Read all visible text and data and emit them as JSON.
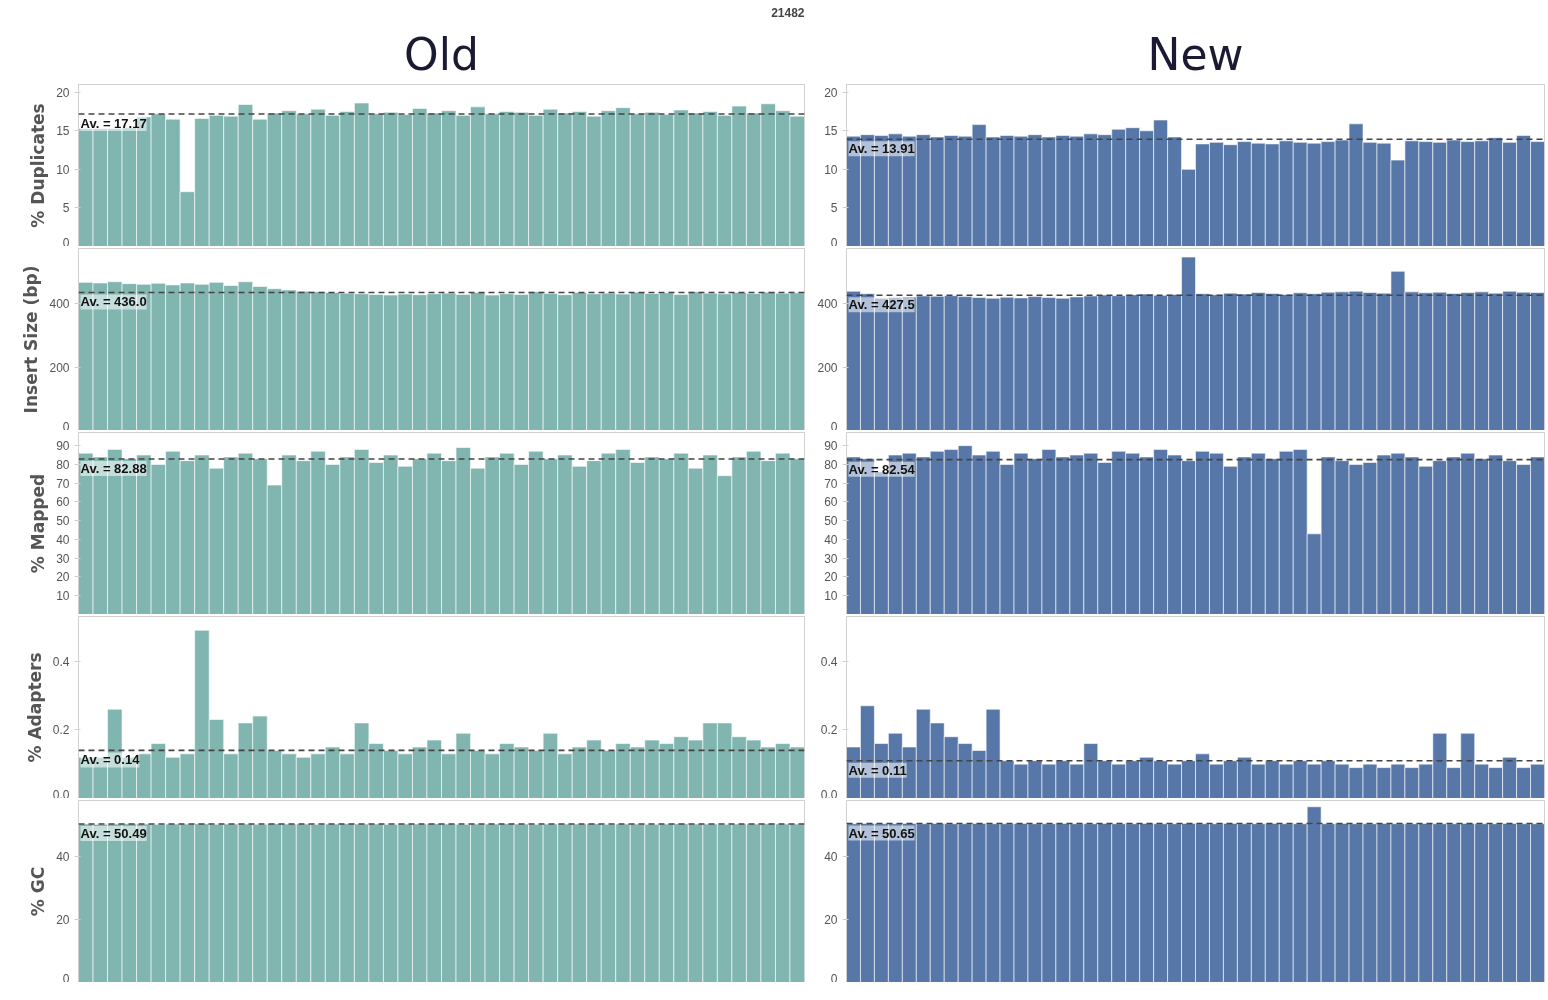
{
  "chart_data": [
    {
      "type": "bar",
      "title": "Old",
      "ylabel": "% Duplicates",
      "tick_labels": "y",
      "annotations": [
        "21482"
      ],
      "color": "#80b5b0",
      "ylim": [
        0,
        21
      ],
      "yticks": [
        0,
        5,
        10,
        15,
        20
      ],
      "categories": [
        null,
        null,
        null,
        null,
        null,
        null,
        null,
        null,
        null,
        null,
        null,
        null,
        null,
        null,
        null,
        null,
        null,
        null,
        null,
        null,
        null,
        null,
        null,
        null,
        null,
        null,
        null,
        null,
        null,
        null,
        null,
        null,
        null,
        null,
        null,
        null,
        null,
        null,
        null,
        null,
        null,
        null,
        null,
        null,
        null,
        null,
        null,
        null,
        null,
        null
      ],
      "values": [
        15.3,
        15.3,
        15.3,
        15.4,
        16.8,
        17.2,
        16.5,
        7.1,
        16.6,
        17.0,
        16.9,
        18.4,
        16.5,
        17.3,
        17.6,
        17.2,
        17.8,
        17.0,
        17.5,
        18.6,
        17.2,
        17.4,
        17.1,
        17.9,
        17.3,
        17.6,
        17.0,
        18.1,
        17.2,
        17.5,
        17.4,
        17.0,
        17.8,
        17.3,
        17.5,
        16.9,
        17.6,
        18.0,
        17.2,
        17.4,
        17.1,
        17.7,
        17.3,
        17.5,
        17.0,
        18.2,
        17.3,
        18.5,
        17.6,
        16.9
      ],
      "ref_lines": [
        {
          "axis": "y",
          "value": 17.17,
          "label": "Av. = 17.17",
          "color": "#444444",
          "line_style": "dashed"
        }
      ]
    },
    {
      "type": "bar",
      "title": "New",
      "tick_labels": "y",
      "color": "#5677a7",
      "ylim": [
        0,
        21
      ],
      "yticks": [
        0,
        5,
        10,
        15,
        20
      ],
      "categories": [
        null,
        null,
        null,
        null,
        null,
        null,
        null,
        null,
        null,
        null,
        null,
        null,
        null,
        null,
        null,
        null,
        null,
        null,
        null,
        null,
        null,
        null,
        null,
        null,
        null,
        null,
        null,
        null,
        null,
        null,
        null,
        null,
        null,
        null,
        null,
        null,
        null,
        null,
        null,
        null,
        null,
        null,
        null,
        null,
        null,
        null,
        null,
        null,
        null,
        null
      ],
      "values": [
        14.3,
        14.5,
        14.4,
        14.6,
        14.3,
        14.5,
        14.2,
        14.4,
        14.3,
        15.8,
        14.2,
        14.4,
        14.3,
        14.5,
        14.2,
        14.4,
        14.3,
        14.6,
        14.5,
        15.2,
        15.4,
        15.0,
        16.4,
        14.2,
        10.0,
        13.3,
        13.5,
        13.2,
        13.6,
        13.4,
        13.3,
        13.7,
        13.5,
        13.4,
        13.6,
        13.8,
        15.9,
        13.5,
        13.4,
        11.2,
        13.7,
        13.6,
        13.5,
        13.8,
        13.6,
        13.7,
        14.1,
        13.5,
        14.4,
        13.6
      ],
      "ref_lines": [
        {
          "axis": "y",
          "value": 13.91,
          "label": "Av. = 13.91",
          "color": "#444444",
          "line_style": "dashed"
        }
      ]
    },
    {
      "type": "bar",
      "ylabel": "Insert Size (bp)",
      "tick_labels": "y",
      "color": "#80b5b0",
      "ylim": [
        0,
        575
      ],
      "yticks": [
        0,
        200,
        400
      ],
      "categories": [
        null,
        null,
        null,
        null,
        null,
        null,
        null,
        null,
        null,
        null,
        null,
        null,
        null,
        null,
        null,
        null,
        null,
        null,
        null,
        null,
        null,
        null,
        null,
        null,
        null,
        null,
        null,
        null,
        null,
        null,
        null,
        null,
        null,
        null,
        null,
        null,
        null,
        null,
        null,
        null,
        null,
        null,
        null,
        null,
        null,
        null,
        null,
        null,
        null,
        null
      ],
      "values": [
        468,
        466,
        470,
        464,
        462,
        465,
        460,
        466,
        462,
        468,
        458,
        470,
        455,
        448,
        444,
        440,
        438,
        436,
        434,
        432,
        430,
        428,
        431,
        429,
        432,
        434,
        430,
        436,
        428,
        432,
        430,
        438,
        433,
        429,
        436,
        432,
        434,
        431,
        437,
        433,
        435,
        430,
        438,
        434,
        432,
        436,
        433,
        437,
        434,
        435
      ],
      "ref_lines": [
        {
          "axis": "y",
          "value": 436.0,
          "label": "Av. = 436.0",
          "color": "#444444",
          "line_style": "dashed"
        }
      ]
    },
    {
      "type": "bar",
      "tick_labels": "y",
      "color": "#5677a7",
      "ylim": [
        0,
        575
      ],
      "yticks": [
        0,
        200,
        400
      ],
      "categories": [
        null,
        null,
        null,
        null,
        null,
        null,
        null,
        null,
        null,
        null,
        null,
        null,
        null,
        null,
        null,
        null,
        null,
        null,
        null,
        null,
        null,
        null,
        null,
        null,
        null,
        null,
        null,
        null,
        null,
        null,
        null,
        null,
        null,
        null,
        null,
        null,
        null,
        null,
        null,
        null,
        null,
        null,
        null,
        null,
        null,
        null,
        null,
        null,
        null,
        null
      ],
      "values": [
        440,
        432,
        418,
        420,
        422,
        425,
        424,
        426,
        423,
        420,
        418,
        421,
        419,
        423,
        420,
        418,
        422,
        425,
        428,
        426,
        429,
        431,
        427,
        430,
        548,
        432,
        429,
        434,
        431,
        436,
        433,
        430,
        435,
        432,
        437,
        438,
        440,
        436,
        434,
        503,
        438,
        435,
        437,
        433,
        436,
        438,
        434,
        440,
        437,
        436
      ],
      "ref_lines": [
        {
          "axis": "y",
          "value": 427.5,
          "label": "Av. = 427.5",
          "color": "#444444",
          "line_style": "dashed"
        }
      ]
    },
    {
      "type": "bar",
      "ylabel": "% Mapped",
      "tick_labels": "y",
      "color": "#80b5b0",
      "ylim": [
        0,
        97
      ],
      "yticks": [
        10,
        20,
        30,
        40,
        50,
        60,
        70,
        80,
        90
      ],
      "categories": [
        null,
        null,
        null,
        null,
        null,
        null,
        null,
        null,
        null,
        null,
        null,
        null,
        null,
        null,
        null,
        null,
        null,
        null,
        null,
        null,
        null,
        null,
        null,
        null,
        null,
        null,
        null,
        null,
        null,
        null,
        null,
        null,
        null,
        null,
        null,
        null,
        null,
        null,
        null,
        null,
        null,
        null,
        null,
        null,
        null,
        null,
        null,
        null,
        null,
        null
      ],
      "values": [
        86,
        84,
        88,
        83,
        85,
        80,
        87,
        82,
        85,
        78,
        84,
        86,
        83,
        69,
        85,
        82,
        87,
        80,
        84,
        88,
        81,
        85,
        79,
        83,
        86,
        82,
        89,
        78,
        84,
        86,
        80,
        87,
        83,
        85,
        79,
        82,
        86,
        88,
        81,
        84,
        83,
        86,
        78,
        85,
        74,
        84,
        87,
        82,
        86,
        83
      ],
      "ref_lines": [
        {
          "axis": "y",
          "value": 82.88,
          "label": "Av. = 82.88",
          "color": "#444444",
          "line_style": "dashed"
        }
      ]
    },
    {
      "type": "bar",
      "tick_labels": "y",
      "color": "#5677a7",
      "ylim": [
        0,
        97
      ],
      "yticks": [
        10,
        20,
        30,
        40,
        50,
        60,
        70,
        80,
        90
      ],
      "categories": [
        null,
        null,
        null,
        null,
        null,
        null,
        null,
        null,
        null,
        null,
        null,
        null,
        null,
        null,
        null,
        null,
        null,
        null,
        null,
        null,
        null,
        null,
        null,
        null,
        null,
        null,
        null,
        null,
        null,
        null,
        null,
        null,
        null,
        null,
        null,
        null,
        null,
        null,
        null,
        null,
        null,
        null,
        null,
        null,
        null,
        null,
        null,
        null,
        null,
        null
      ],
      "values": [
        84,
        83,
        76,
        85,
        86,
        84,
        87,
        88,
        90,
        85,
        87,
        80,
        86,
        83,
        88,
        84,
        85,
        86,
        81,
        87,
        86,
        84,
        88,
        85,
        82,
        87,
        86,
        79,
        84,
        86,
        83,
        87,
        88,
        43,
        84,
        82,
        80,
        81,
        85,
        86,
        84,
        79,
        82,
        84,
        86,
        83,
        85,
        82,
        80,
        84
      ],
      "ref_lines": [
        {
          "axis": "y",
          "value": 82.54,
          "label": "Av. = 82.54",
          "color": "#444444",
          "line_style": "dashed"
        }
      ]
    },
    {
      "type": "bar",
      "ylabel": "% Adapters",
      "tick_labels": "y",
      "color": "#80b5b0",
      "ylim": [
        0,
        0.53
      ],
      "yticks": [
        {
          "value": 0,
          "label": "0.0"
        },
        0.2,
        0.4
      ],
      "categories": [
        null,
        null,
        null,
        null,
        null,
        null,
        null,
        null,
        null,
        null,
        null,
        null,
        null,
        null,
        null,
        null,
        null,
        null,
        null,
        null,
        null,
        null,
        null,
        null,
        null,
        null,
        null,
        null,
        null,
        null,
        null,
        null,
        null,
        null,
        null,
        null,
        null,
        null,
        null,
        null,
        null,
        null,
        null,
        null,
        null,
        null,
        null,
        null,
        null,
        null
      ],
      "values": [
        0.12,
        0.12,
        0.26,
        0.12,
        0.13,
        0.16,
        0.12,
        0.13,
        0.49,
        0.23,
        0.13,
        0.22,
        0.24,
        0.14,
        0.13,
        0.12,
        0.13,
        0.15,
        0.13,
        0.22,
        0.16,
        0.14,
        0.13,
        0.15,
        0.17,
        0.13,
        0.19,
        0.14,
        0.13,
        0.16,
        0.15,
        0.14,
        0.19,
        0.13,
        0.15,
        0.17,
        0.14,
        0.16,
        0.15,
        0.17,
        0.16,
        0.18,
        0.17,
        0.22,
        0.22,
        0.18,
        0.17,
        0.15,
        0.16,
        0.15
      ],
      "ref_lines": [
        {
          "axis": "y",
          "value": 0.14,
          "label": "Av. = 0.14",
          "color": "#444444",
          "line_style": "dashed"
        }
      ]
    },
    {
      "type": "bar",
      "tick_labels": "y",
      "color": "#5677a7",
      "ylim": [
        0,
        0.53
      ],
      "yticks": [
        {
          "value": 0,
          "label": "0.0"
        },
        0.2,
        0.4
      ],
      "categories": [
        null,
        null,
        null,
        null,
        null,
        null,
        null,
        null,
        null,
        null,
        null,
        null,
        null,
        null,
        null,
        null,
        null,
        null,
        null,
        null,
        null,
        null,
        null,
        null,
        null,
        null,
        null,
        null,
        null,
        null,
        null,
        null,
        null,
        null,
        null,
        null,
        null,
        null,
        null,
        null,
        null,
        null,
        null,
        null,
        null,
        null,
        null,
        null,
        null,
        null
      ],
      "values": [
        0.15,
        0.27,
        0.16,
        0.19,
        0.15,
        0.26,
        0.22,
        0.18,
        0.16,
        0.14,
        0.26,
        0.11,
        0.1,
        0.11,
        0.1,
        0.11,
        0.1,
        0.16,
        0.11,
        0.1,
        0.11,
        0.12,
        0.11,
        0.1,
        0.11,
        0.13,
        0.1,
        0.11,
        0.12,
        0.1,
        0.11,
        0.1,
        0.11,
        0.1,
        0.11,
        0.1,
        0.09,
        0.1,
        0.09,
        0.1,
        0.09,
        0.1,
        0.19,
        0.09,
        0.19,
        0.1,
        0.09,
        0.12,
        0.09,
        0.1
      ],
      "ref_lines": [
        {
          "axis": "y",
          "value": 0.11,
          "label": "Av. = 0.11",
          "color": "#444444",
          "line_style": "dashed"
        }
      ]
    },
    {
      "type": "bar",
      "ylabel": "% GC",
      "tick_labels": "y",
      "color": "#80b5b0",
      "ylim": [
        0,
        58
      ],
      "yticks": [
        0,
        20,
        40
      ],
      "categories": [
        null,
        null,
        null,
        null,
        null,
        null,
        null,
        null,
        null,
        null,
        null,
        null,
        null,
        null,
        null,
        null,
        null,
        null,
        null,
        null,
        null,
        null,
        null,
        null,
        null,
        null,
        null,
        null,
        null,
        null,
        null,
        null,
        null,
        null,
        null,
        null,
        null,
        null,
        null,
        null,
        null,
        null,
        null,
        null,
        null,
        null,
        null,
        null,
        null,
        null
      ],
      "values": [
        50.5,
        50.4,
        50.5,
        50.6,
        50.5,
        50.4,
        50.5,
        50.5,
        50.6,
        50.4,
        50.5,
        50.5,
        50.4,
        50.6,
        50.5,
        50.5,
        50.4,
        50.5,
        50.6,
        50.5,
        50.5,
        50.4,
        50.5,
        50.5,
        50.6,
        50.5,
        50.4,
        50.5,
        50.5,
        50.6,
        50.5,
        50.4,
        50.5,
        50.5,
        50.5,
        50.6,
        50.4,
        50.5,
        50.5,
        50.4,
        50.5,
        50.6,
        50.5,
        50.5,
        50.4,
        50.5,
        50.5,
        50.6,
        50.5,
        50.5
      ],
      "ref_lines": [
        {
          "axis": "y",
          "value": 50.49,
          "label": "Av. = 50.49",
          "color": "#444444",
          "line_style": "dashed"
        }
      ]
    },
    {
      "type": "bar",
      "tick_labels": "y",
      "color": "#5677a7",
      "ylim": [
        0,
        58
      ],
      "yticks": [
        0,
        20,
        40
      ],
      "categories": [
        null,
        null,
        null,
        null,
        null,
        null,
        null,
        null,
        null,
        null,
        null,
        null,
        null,
        null,
        null,
        null,
        null,
        null,
        null,
        null,
        null,
        null,
        null,
        null,
        null,
        null,
        null,
        null,
        null,
        null,
        null,
        null,
        null,
        null,
        null,
        null,
        null,
        null,
        null,
        null,
        null,
        null,
        null,
        null,
        null,
        null,
        null,
        null,
        null,
        null
      ],
      "values": [
        50.6,
        50.7,
        50.6,
        50.6,
        50.7,
        50.6,
        50.7,
        50.6,
        50.6,
        50.7,
        50.6,
        50.6,
        50.7,
        50.6,
        50.6,
        50.7,
        50.6,
        50.6,
        50.7,
        50.6,
        50.6,
        50.7,
        50.6,
        50.6,
        50.7,
        50.6,
        50.6,
        50.7,
        50.6,
        50.6,
        50.7,
        50.6,
        50.6,
        56.0,
        50.6,
        50.7,
        50.6,
        50.6,
        50.7,
        50.6,
        50.6,
        50.7,
        50.6,
        50.6,
        50.7,
        50.6,
        50.6,
        50.7,
        50.6,
        50.6
      ],
      "ref_lines": [
        {
          "axis": "y",
          "value": 50.65,
          "label": "Av. = 50.65",
          "color": "#444444",
          "line_style": "dashed"
        }
      ]
    }
  ]
}
